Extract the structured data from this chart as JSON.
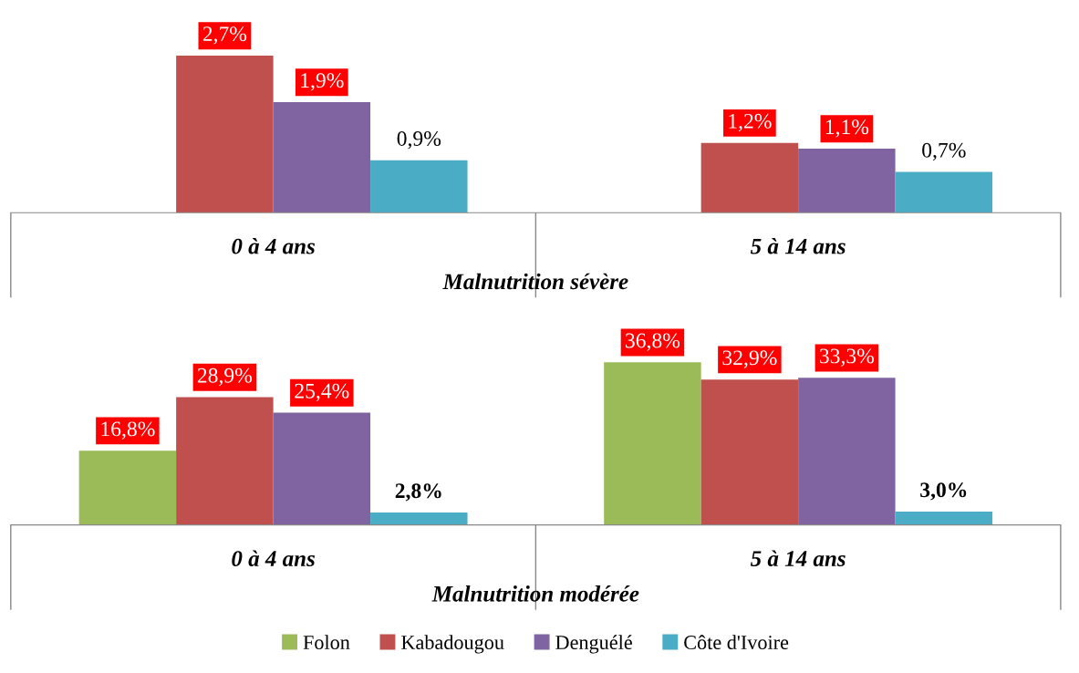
{
  "chart_data": [
    {
      "type": "bar",
      "categories": [
        "0 à 4 ans",
        "5 à 14 ans"
      ],
      "xlabel": "Malnutrition sévère",
      "tick_labels": "x",
      "grid": false,
      "series": [
        {
          "color": "#9bbb59",
          "values": [
            null,
            null
          ],
          "value_labels": [
            null,
            null
          ]
        },
        {
          "color": "#c0504d",
          "values": [
            2.7,
            1.2
          ],
          "value_labels": [
            "2,7%",
            "1,2%"
          ]
        },
        {
          "color": "#8064a2",
          "values": [
            1.9,
            1.1
          ],
          "value_labels": [
            "1,9%",
            "1,1%"
          ]
        },
        {
          "color": "#4bacc6",
          "values": [
            0.9,
            0.7
          ],
          "value_labels": [
            "0,9%",
            "0,7%"
          ]
        }
      ]
    },
    {
      "type": "bar",
      "categories": [
        "0 à 4 ans",
        "5 à 14 ans"
      ],
      "xlabel": "Malnutrition modérée",
      "tick_labels": "x",
      "legend": "bottom",
      "grid": false,
      "series": [
        {
          "name": "Folon",
          "color": "#9bbb59",
          "values": [
            16.8,
            36.8
          ],
          "value_labels": [
            "16,8%",
            "36,8%"
          ]
        },
        {
          "name": "Kabadougou",
          "color": "#c0504d",
          "values": [
            28.9,
            32.9
          ],
          "value_labels": [
            "28,9%",
            "32,9%"
          ]
        },
        {
          "name": "Denguélé",
          "color": "#8064a2",
          "values": [
            25.4,
            33.3
          ],
          "value_labels": [
            "25,4%",
            "33,3%"
          ]
        },
        {
          "name": "Côte d'Ivoire",
          "color": "#4bacc6",
          "values": [
            2.8,
            3.0
          ],
          "value_labels": [
            "2,8%",
            "3,0%"
          ]
        }
      ]
    }
  ]
}
